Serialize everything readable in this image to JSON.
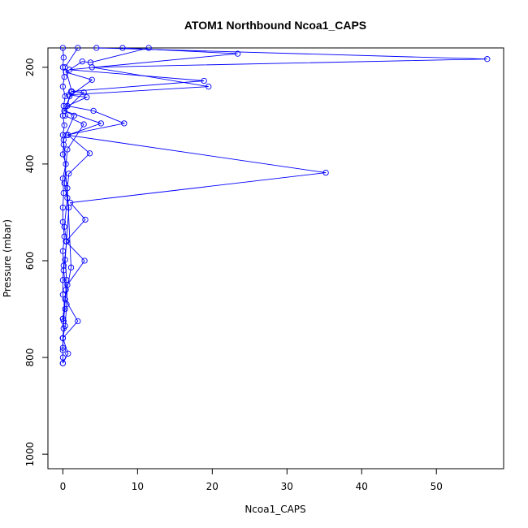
{
  "chart_data": {
    "type": "line",
    "title": "ATOM1 Northbound Ncoa1_CAPS",
    "xlabel": "Ncoa1_CAPS",
    "ylabel": "Pressure (mbar)",
    "xlim": [
      -2,
      59
    ],
    "ylim": [
      1030,
      160
    ],
    "y_reversed": true,
    "x_ticks": [
      0,
      10,
      20,
      30,
      40,
      50
    ],
    "x_tick_labels": [
      "0",
      "10",
      "20",
      "30",
      "40",
      "50"
    ],
    "y_ticks": [
      200,
      400,
      600,
      800,
      1000
    ],
    "y_tick_labels": [
      "200",
      "400",
      "600",
      "800",
      "1000"
    ],
    "grid": false,
    "legend": "none",
    "series_color": "#0000ff",
    "marker": "open-circle",
    "series": [
      {
        "x": [
          0.0,
          0.1,
          0.0,
          0.2,
          0.0,
          0.3,
          0.1,
          0.0,
          0.2,
          0.0,
          0.1,
          0.0,
          0.4,
          0.0,
          0.1,
          0.0,
          0.0,
          0.2,
          0.0,
          0.1,
          0.0,
          0.0,
          0.3,
          0.0,
          0.1,
          0.0,
          0.0,
          0.0,
          0.0
        ],
        "y": [
          160,
          180,
          200,
          220,
          240,
          260,
          280,
          300,
          320,
          340,
          360,
          380,
          400,
          430,
          460,
          490,
          520,
          550,
          580,
          610,
          640,
          670,
          700,
          720,
          740,
          760,
          780,
          800,
          812
        ]
      },
      {
        "x": [
          4.5,
          56.8,
          3.9,
          19.5,
          0.8,
          3.2,
          0.6,
          4.1,
          8.2,
          0.5,
          35.2,
          1.0,
          3.0,
          0.4,
          2.9,
          0.6,
          0.5,
          0.3,
          0.0
        ],
        "y": [
          160,
          183,
          200,
          240,
          257,
          262,
          280,
          290,
          316,
          340,
          418,
          480,
          515,
          560,
          600,
          650,
          690,
          735,
          760
        ]
      },
      {
        "x": [
          8.0,
          23.4,
          0.9,
          18.9,
          1.1,
          2.8,
          0.2,
          5.1,
          0.7,
          3.6,
          0.8,
          0.6,
          1.1,
          0.3,
          2.0,
          0.0,
          0.7,
          0.0
        ],
        "y": [
          160,
          172,
          205,
          228,
          250,
          252,
          290,
          316,
          340,
          378,
          420,
          450,
          614,
          680,
          725,
          760,
          792,
          812
        ]
      },
      {
        "x": [
          11.5,
          3.7,
          2.6,
          0.4,
          3.9,
          0.9,
          0.3,
          2.8,
          0.6,
          0.2,
          0.8,
          0.3,
          0.5,
          0.1,
          0.0
        ],
        "y": [
          160,
          190,
          188,
          210,
          226,
          260,
          300,
          318,
          370,
          440,
          490,
          598,
          640,
          725,
          785
        ]
      },
      {
        "x": [
          2.0,
          0.3,
          1.2,
          0.2,
          1.5,
          0.1,
          0.6,
          0.2,
          0.5,
          0.1,
          0.4,
          0.0
        ],
        "y": [
          160,
          200,
          250,
          290,
          300,
          350,
          470,
          530,
          560,
          620,
          660,
          720
        ]
      }
    ]
  }
}
